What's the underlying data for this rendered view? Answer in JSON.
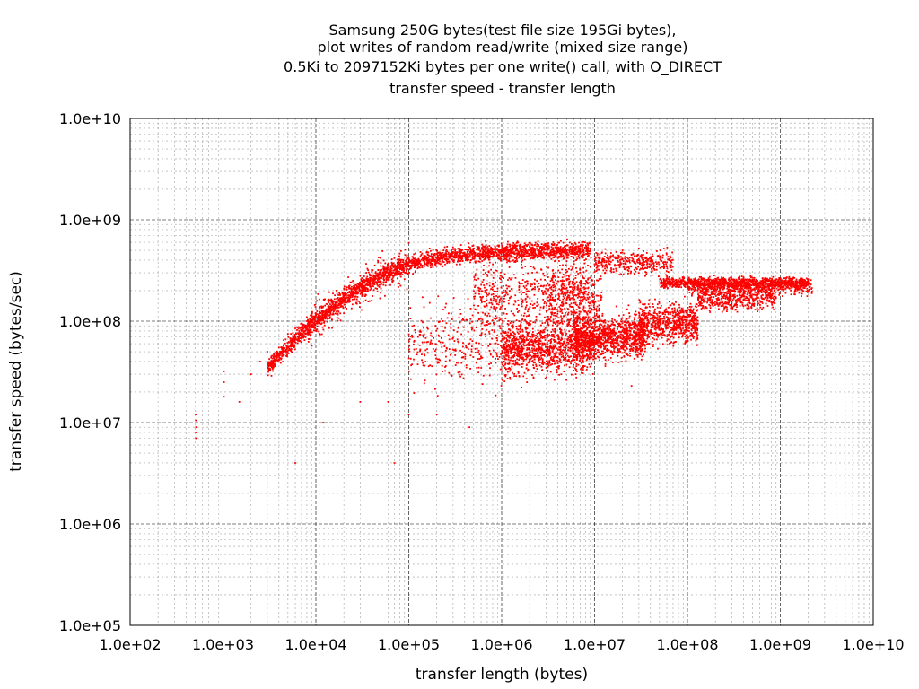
{
  "chart_data": {
    "type": "scatter",
    "title_lines": [
      "Samsung 250G bytes(test file size 195Gi bytes),",
      "plot writes of random read/write (mixed size range)",
      "0.5Ki to 2097152Ki bytes per one write() call, with O_DIRECT",
      "transfer speed - transfer length"
    ],
    "xlabel": "transfer length (bytes)",
    "ylabel": "transfer speed (bytes/sec)",
    "x_scale": "log",
    "y_scale": "log",
    "xlim": [
      100,
      10000000000
    ],
    "ylim": [
      100000,
      10000000000
    ],
    "x_ticks": [
      {
        "value": 100,
        "label": "1.0e+02"
      },
      {
        "value": 1000,
        "label": "1.0e+03"
      },
      {
        "value": 10000,
        "label": "1.0e+04"
      },
      {
        "value": 100000,
        "label": "1.0e+05"
      },
      {
        "value": 1000000,
        "label": "1.0e+06"
      },
      {
        "value": 10000000,
        "label": "1.0e+07"
      },
      {
        "value": 100000000,
        "label": "1.0e+08"
      },
      {
        "value": 1000000000,
        "label": "1.0e+09"
      },
      {
        "value": 10000000000,
        "label": "1.0e+10"
      }
    ],
    "y_ticks": [
      {
        "value": 100000,
        "label": "1.0e+05"
      },
      {
        "value": 1000000,
        "label": "1.0e+06"
      },
      {
        "value": 10000000,
        "label": "1.0e+07"
      },
      {
        "value": 100000000,
        "label": "1.0e+08"
      },
      {
        "value": 1000000000,
        "label": "1.0e+09"
      },
      {
        "value": 10000000000,
        "label": "1.0e+10"
      }
    ],
    "grid": true,
    "marker_color": "#ff0000",
    "grid_major_color": "#000000",
    "grid_minor_color": "#a0a0a0",
    "points": [
      [
        512,
        12000000
      ],
      [
        512,
        9000000
      ],
      [
        512,
        7000000
      ],
      [
        512,
        10500000
      ],
      [
        512,
        8000000
      ],
      [
        1024,
        18000000
      ],
      [
        1024,
        25000000
      ],
      [
        1024,
        32000000
      ],
      [
        1500,
        16000000
      ],
      [
        2000,
        30000000
      ],
      [
        2500,
        40000000
      ],
      [
        3000,
        50000000
      ],
      [
        3500,
        35000000
      ],
      [
        4000,
        55000000
      ],
      [
        4500,
        65000000
      ],
      [
        5000,
        75000000
      ],
      [
        6000,
        85000000
      ],
      [
        7000,
        95000000
      ],
      [
        8000,
        100000000
      ],
      [
        9000,
        110000000
      ],
      [
        10000,
        120000000
      ],
      [
        12000,
        140000000
      ],
      [
        14000,
        160000000
      ],
      [
        16000,
        180000000
      ],
      [
        20000,
        210000000
      ],
      [
        25000,
        250000000
      ],
      [
        30000,
        280000000
      ],
      [
        40000,
        320000000
      ],
      [
        50000,
        350000000
      ],
      [
        60000,
        370000000
      ],
      [
        80000,
        400000000
      ],
      [
        100000,
        420000000
      ],
      [
        150000,
        440000000
      ],
      [
        200000,
        460000000
      ],
      [
        300000,
        480000000
      ],
      [
        500000,
        490000000
      ],
      [
        1000000,
        500000000
      ],
      [
        2000000,
        500000000
      ],
      [
        5000000,
        505000000
      ],
      [
        9000000,
        505000000
      ],
      [
        6000,
        4000000
      ],
      [
        12000,
        10000000
      ],
      [
        70000,
        4000000
      ],
      [
        30000,
        16000000
      ],
      [
        60000,
        16000000
      ],
      [
        100000,
        12000000
      ],
      [
        200000,
        12000000
      ],
      [
        450000,
        9000000
      ],
      [
        20000000,
        500000000
      ],
      [
        40000000,
        350000000
      ],
      [
        60000000,
        280000000
      ],
      [
        100000000,
        260000000
      ],
      [
        200000000,
        250000000
      ],
      [
        500000000,
        245000000
      ],
      [
        1000000000,
        240000000
      ],
      [
        2000000000,
        240000000
      ],
      [
        25000000,
        23000000
      ],
      [
        130000000,
        95000000
      ],
      [
        120000000,
        80000000
      ]
    ],
    "clouds": [
      {
        "xmin": 3000,
        "xmax": 9000000,
        "trend": "upper",
        "ymid": 0,
        "spread": 0.07,
        "count": 2600
      },
      {
        "xmin": 8000,
        "xmax": 100000,
        "trend": "upper",
        "ymid": 0,
        "spread": 0.16,
        "count": 350
      },
      {
        "xmin": 10000000,
        "xmax": 70000000,
        "trend": "flat",
        "ymid": 380000000,
        "spread": 0.1,
        "count": 350
      },
      {
        "xmin": 50000000,
        "xmax": 2000000000,
        "trend": "flat",
        "ymid": 240000000,
        "spread": 0.045,
        "count": 900
      },
      {
        "xmin": 100000000,
        "xmax": 2200000000,
        "trend": "flat",
        "ymid": 215000000,
        "spread": 0.06,
        "count": 450
      },
      {
        "xmin": 1000000,
        "xmax": 10000000,
        "trend": "flat",
        "ymid": 55000000,
        "spread": 0.2,
        "count": 1100
      },
      {
        "xmin": 6000000,
        "xmax": 35000000,
        "trend": "flat",
        "ymid": 70000000,
        "spread": 0.17,
        "count": 1100
      },
      {
        "xmin": 30000000,
        "xmax": 130000000,
        "trend": "flat",
        "ymid": 95000000,
        "spread": 0.16,
        "count": 700
      },
      {
        "xmin": 130000000,
        "xmax": 900000000,
        "trend": "flat",
        "ymid": 170000000,
        "spread": 0.1,
        "count": 500
      },
      {
        "xmin": 100000,
        "xmax": 2000000,
        "trend": "flat",
        "ymid": 60000000,
        "spread": 0.35,
        "count": 420
      },
      {
        "xmin": 500000,
        "xmax": 10000000,
        "trend": "flat",
        "ymid": 200000000,
        "spread": 0.25,
        "count": 500
      },
      {
        "xmin": 3000000,
        "xmax": 12000000,
        "trend": "flat",
        "ymid": 150000000,
        "spread": 0.3,
        "count": 400
      }
    ]
  }
}
